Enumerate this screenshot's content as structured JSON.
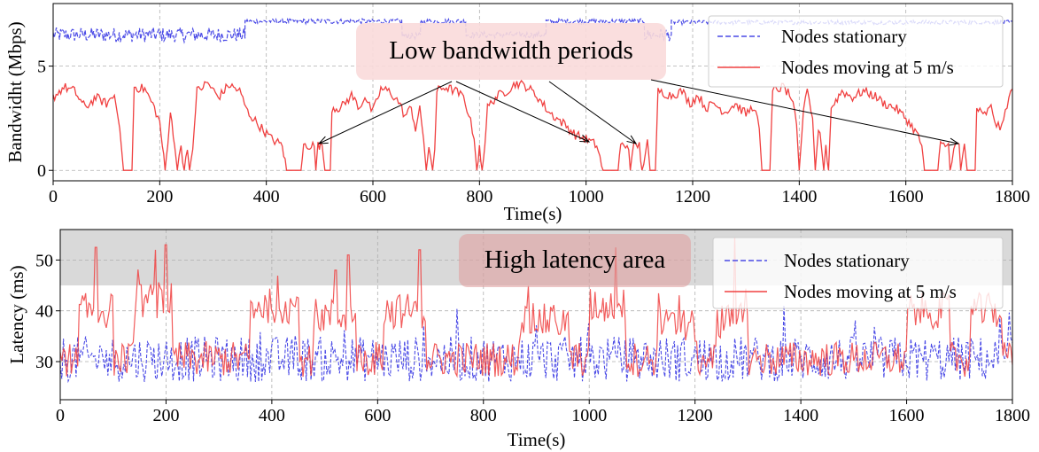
{
  "chart_data": [
    {
      "type": "line",
      "xlabel": "Time(s)",
      "ylabel": "Bandwidht (Mbps)",
      "xlim": [
        0,
        1800
      ],
      "ylim": [
        -0.5,
        8.0
      ],
      "xticks": [
        0,
        200,
        400,
        600,
        800,
        1000,
        1200,
        1400,
        1600,
        1800
      ],
      "yticks": [
        0,
        5
      ],
      "grid": true,
      "legend_position": "top-right",
      "series": [
        {
          "name": "Nodes stationary",
          "color": "#4a4ae6",
          "style": "dashed",
          "segments": [
            {
              "x0": 0,
              "x1": 360,
              "y": 6.5,
              "noise": 0.35
            },
            {
              "x0": 360,
              "x1": 655,
              "y": 7.15,
              "noise": 0.12
            },
            {
              "x0": 655,
              "x1": 690,
              "y": 6.45,
              "noise": 0.15
            },
            {
              "x0": 690,
              "x1": 775,
              "y": 7.15,
              "noise": 0.12
            },
            {
              "x0": 775,
              "x1": 925,
              "y": 6.5,
              "noise": 0.15
            },
            {
              "x0": 925,
              "x1": 1110,
              "y": 7.15,
              "noise": 0.12
            },
            {
              "x0": 1110,
              "x1": 1160,
              "y": 6.5,
              "noise": 0.3
            },
            {
              "x0": 1160,
              "x1": 1800,
              "y": 7.1,
              "noise": 0.1
            }
          ]
        },
        {
          "name": "Nodes moving at 5 m/s",
          "color": "#f04040",
          "style": "solid",
          "points": [
            [
              0,
              3.5
            ],
            [
              20,
              4.0
            ],
            [
              40,
              3.8
            ],
            [
              60,
              3.0
            ],
            [
              80,
              3.5
            ],
            [
              100,
              3.2
            ],
            [
              115,
              3.6
            ],
            [
              125,
              2.0
            ],
            [
              132,
              0
            ],
            [
              148,
              0
            ],
            [
              152,
              4.0
            ],
            [
              172,
              3.9
            ],
            [
              190,
              3.0
            ],
            [
              200,
              2.3
            ],
            [
              205,
              1.2
            ],
            [
              210,
              0
            ],
            [
              215,
              1.2
            ],
            [
              220,
              2.8
            ],
            [
              228,
              1.3
            ],
            [
              233,
              0
            ],
            [
              240,
              1.2
            ],
            [
              246,
              0
            ],
            [
              252,
              1.2
            ],
            [
              256,
              0
            ],
            [
              262,
              1.0
            ],
            [
              270,
              3.8
            ],
            [
              290,
              4.2
            ],
            [
              310,
              3.5
            ],
            [
              330,
              4.1
            ],
            [
              350,
              3.8
            ],
            [
              365,
              2.8
            ],
            [
              385,
              2.2
            ],
            [
              410,
              1.5
            ],
            [
              430,
              1.2
            ],
            [
              438,
              0
            ],
            [
              465,
              0
            ],
            [
              470,
              1.2
            ],
            [
              490,
              1.2
            ],
            [
              493,
              0
            ],
            [
              497,
              1.2
            ],
            [
              505,
              1.2
            ],
            [
              510,
              0
            ],
            [
              520,
              0
            ],
            [
              523,
              3.0
            ],
            [
              540,
              3.0
            ],
            [
              560,
              3.6
            ],
            [
              575,
              3.0
            ],
            [
              585,
              3.6
            ],
            [
              590,
              3.2
            ],
            [
              600,
              2.8
            ],
            [
              615,
              3.9
            ],
            [
              630,
              3.8
            ],
            [
              648,
              3.3
            ],
            [
              660,
              2.6
            ],
            [
              672,
              3.0
            ],
            [
              680,
              2.0
            ],
            [
              688,
              2.9
            ],
            [
              695,
              1.5
            ],
            [
              700,
              0
            ],
            [
              705,
              1.2
            ],
            [
              712,
              0
            ],
            [
              716,
              1.0
            ],
            [
              720,
              3.8
            ],
            [
              735,
              4.0
            ],
            [
              755,
              3.8
            ],
            [
              770,
              3.5
            ],
            [
              780,
              2.7
            ],
            [
              790,
              1.5
            ],
            [
              795,
              0
            ],
            [
              800,
              1.2
            ],
            [
              805,
              0
            ],
            [
              810,
              1.2
            ],
            [
              815,
              3.0
            ],
            [
              830,
              3.5
            ],
            [
              850,
              3.8
            ],
            [
              870,
              4.2
            ],
            [
              890,
              4.0
            ],
            [
              910,
              3.5
            ],
            [
              930,
              2.8
            ],
            [
              960,
              2.2
            ],
            [
              980,
              1.7
            ],
            [
              1000,
              1.5
            ],
            [
              1020,
              1.2
            ],
            [
              1032,
              0
            ],
            [
              1060,
              0
            ],
            [
              1065,
              1.2
            ],
            [
              1080,
              1.2
            ],
            [
              1083,
              0
            ],
            [
              1090,
              1.2
            ],
            [
              1100,
              1.2
            ],
            [
              1105,
              0
            ],
            [
              1115,
              1.3
            ],
            [
              1120,
              0
            ],
            [
              1130,
              0
            ],
            [
              1135,
              3.8
            ],
            [
              1160,
              3.6
            ],
            [
              1180,
              3.8
            ],
            [
              1195,
              3.2
            ],
            [
              1210,
              3.6
            ],
            [
              1225,
              3.0
            ],
            [
              1240,
              3.2
            ],
            [
              1260,
              2.8
            ],
            [
              1280,
              3.2
            ],
            [
              1300,
              2.7
            ],
            [
              1315,
              3.1
            ],
            [
              1325,
              2.0
            ],
            [
              1330,
              0
            ],
            [
              1345,
              0
            ],
            [
              1350,
              3.8
            ],
            [
              1370,
              4.0
            ],
            [
              1385,
              3.5
            ],
            [
              1395,
              2.2
            ],
            [
              1400,
              0
            ],
            [
              1408,
              2.8
            ],
            [
              1415,
              3.8
            ],
            [
              1425,
              2.5
            ],
            [
              1430,
              0
            ],
            [
              1436,
              2.0
            ],
            [
              1442,
              1.2
            ],
            [
              1446,
              0
            ],
            [
              1450,
              1.2
            ],
            [
              1455,
              0
            ],
            [
              1460,
              3.0
            ],
            [
              1480,
              3.8
            ],
            [
              1500,
              3.5
            ],
            [
              1520,
              3.8
            ],
            [
              1540,
              3.6
            ],
            [
              1560,
              3.2
            ],
            [
              1580,
              3.0
            ],
            [
              1600,
              2.5
            ],
            [
              1620,
              1.8
            ],
            [
              1630,
              1.2
            ],
            [
              1635,
              0
            ],
            [
              1660,
              0
            ],
            [
              1665,
              1.2
            ],
            [
              1680,
              1.2
            ],
            [
              1683,
              0
            ],
            [
              1690,
              1.2
            ],
            [
              1700,
              1.2
            ],
            [
              1703,
              0
            ],
            [
              1710,
              1.2
            ],
            [
              1715,
              0
            ],
            [
              1730,
              0
            ],
            [
              1733,
              3.0
            ],
            [
              1745,
              2.6
            ],
            [
              1760,
              3.0
            ],
            [
              1770,
              2.2
            ],
            [
              1780,
              2.0
            ],
            [
              1790,
              3.2
            ],
            [
              1800,
              3.9
            ]
          ]
        }
      ],
      "annotation": {
        "text": "Low bandwidth periods",
        "arrows": [
          {
            "from": [
              760,
              4.2
            ],
            "to": [
              490,
              1.2
            ]
          },
          {
            "from": [
              760,
              4.2
            ],
            "to": [
              930,
              4.2
            ]
          },
          {
            "from": [
              930,
              4.2
            ],
            "to": [
              1095,
              1.2
            ]
          },
          {
            "from": [
              1125,
              4.4
            ],
            "to": [
              1700,
              1.2
            ]
          }
        ]
      }
    },
    {
      "type": "line",
      "xlabel": "Time(s)",
      "ylabel": "Latency (ms)",
      "xlim": [
        0,
        1800
      ],
      "ylim": [
        22.5,
        56.0
      ],
      "xticks": [
        0,
        200,
        400,
        600,
        800,
        1000,
        1200,
        1400,
        1600,
        1800
      ],
      "yticks": [
        30,
        40,
        50
      ],
      "grid": true,
      "legend_position": "top-right",
      "shaded_region": {
        "y0": 45,
        "y1": 56,
        "color": "#d9d9d9"
      },
      "series": [
        {
          "name": "Nodes stationary",
          "color": "#4a4ae6",
          "style": "dashed",
          "base": 30.5,
          "noise": 4.5
        },
        {
          "name": "Nodes moving at 5 m/s",
          "color": "#f04040",
          "style": "solid",
          "elevated_ranges": [
            [
              35,
              100,
              40
            ],
            [
              140,
              210,
              42
            ],
            [
              360,
              450,
              41
            ],
            [
              480,
              560,
              39
            ],
            [
              610,
              690,
              40
            ],
            [
              870,
              960,
              38
            ],
            [
              1000,
              1070,
              41
            ],
            [
              1130,
              1200,
              37
            ],
            [
              1240,
              1300,
              38
            ],
            [
              1600,
              1680,
              40
            ],
            [
              1720,
              1780,
              40
            ]
          ],
          "peaks": [
            [
              68,
              52.5
            ],
            [
              180,
              52
            ],
            [
              200,
              53
            ],
            [
              520,
              48
            ],
            [
              545,
              51
            ],
            [
              680,
              52
            ],
            [
              1050,
              52.5
            ],
            [
              1275,
              54.5
            ]
          ],
          "base": 30.5,
          "noise": 3.5
        }
      ],
      "annotation": {
        "text": "High latency area"
      }
    }
  ]
}
